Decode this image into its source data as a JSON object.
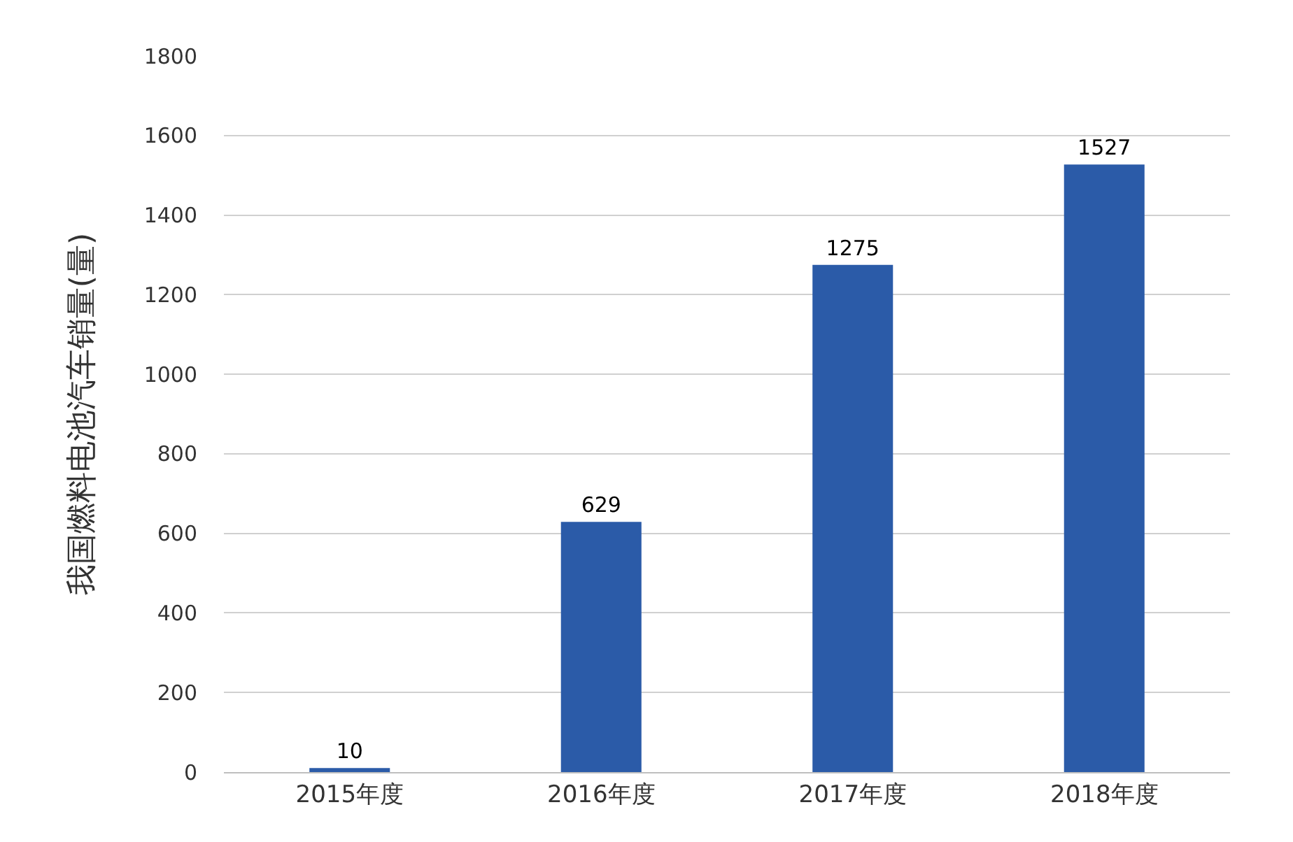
{
  "chart_data": {
    "type": "bar",
    "ylabel": "我国燃料电池汽车销量(量)",
    "categories": [
      "2015年度",
      "2016年度",
      "2017年度",
      "2018年度"
    ],
    "values": [
      10,
      629,
      1275,
      1527
    ],
    "color": "#2b5ba8",
    "ylim": [
      0,
      1800
    ],
    "yticks": [
      0,
      200,
      400,
      600,
      800,
      1000,
      1200,
      1400,
      1600,
      1800
    ],
    "grid": "y",
    "data_labels": true
  }
}
